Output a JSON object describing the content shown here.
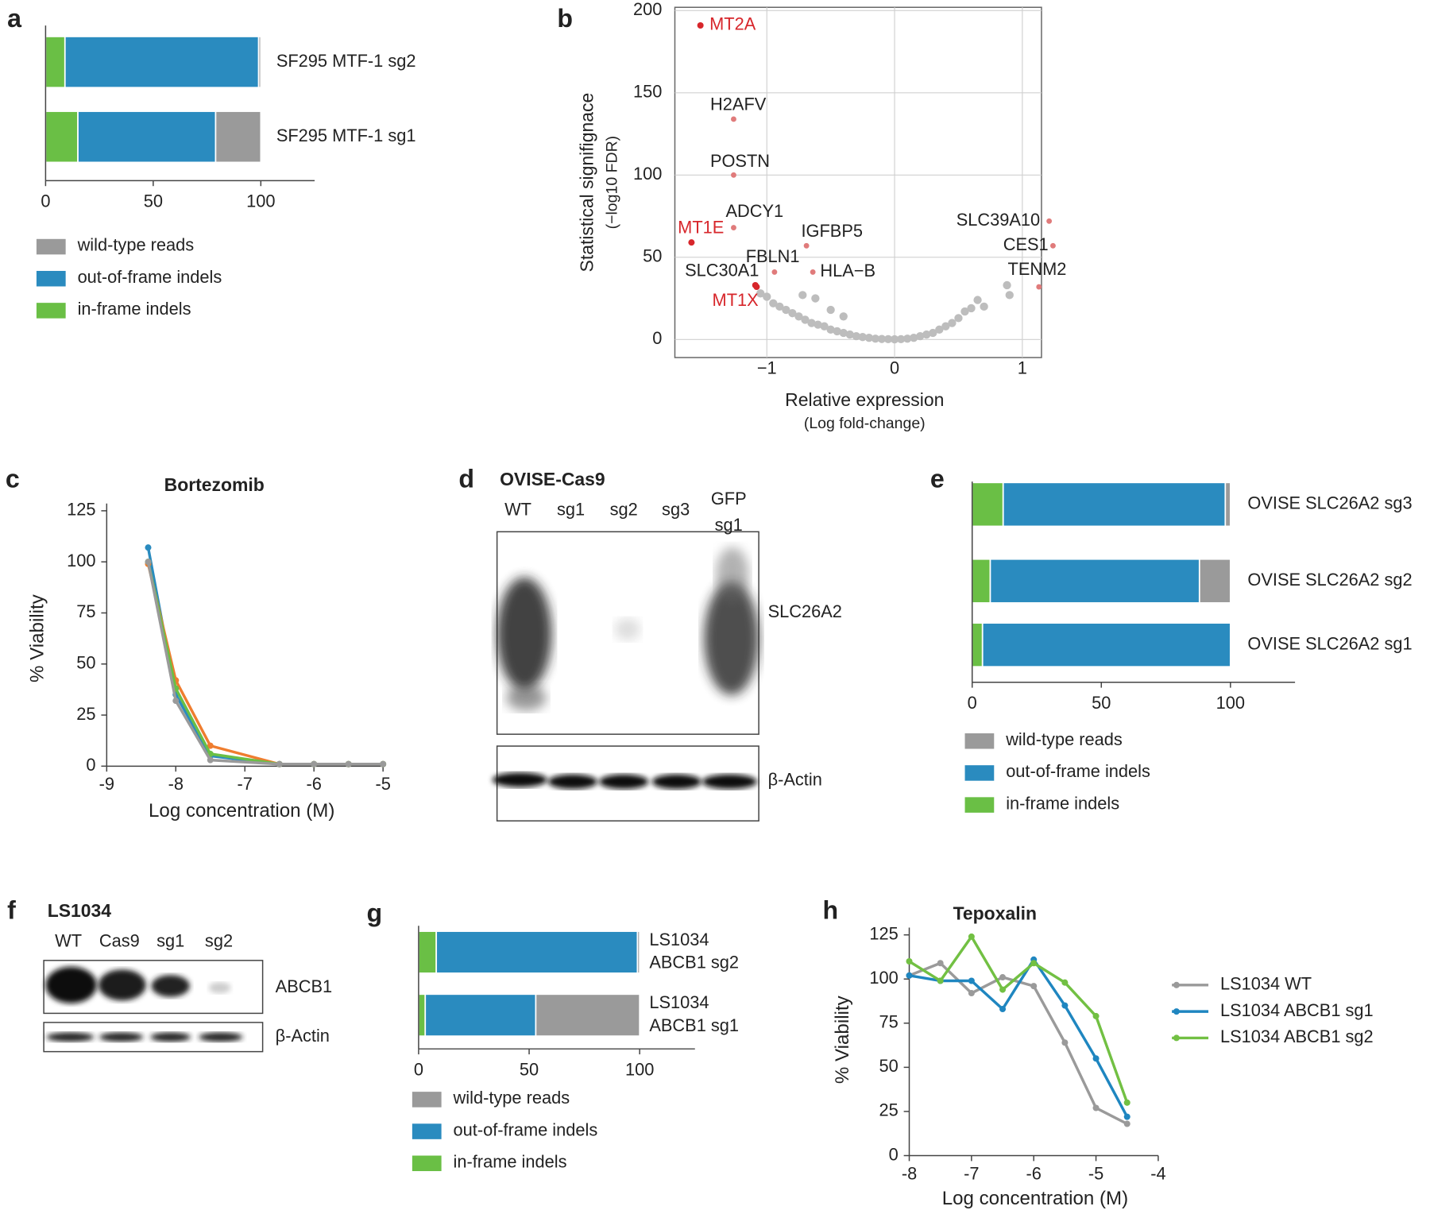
{
  "chart_data": [
    {
      "type": "hbar_stacked",
      "panel": "a",
      "categories": [
        "SF295 MTF-1 sg2",
        "SF295 MTF-1 sg1"
      ],
      "series": [
        {
          "name": "in-frame indels",
          "color": "#6abf45",
          "values": [
            9,
            15
          ]
        },
        {
          "name": "out-of-frame indels",
          "color": "#2a8bbf",
          "values": [
            90,
            64
          ]
        },
        {
          "name": "wild-type reads",
          "color": "#9a9a9a",
          "values": [
            1,
            21
          ]
        }
      ],
      "xlim": [
        0,
        125
      ],
      "xticks": [
        0,
        50,
        100
      ]
    },
    {
      "type": "volcano",
      "panel": "b",
      "ylabel": "Statistical signifignace",
      "ylabel_sub": "(−log10 FDR)",
      "xlabel": "Relative expression",
      "xlabel_sub": "(Log fold-change)",
      "xlim": [
        -1.72,
        1.15
      ],
      "ylim": [
        -11,
        202
      ],
      "xticks": [
        {
          "value": -1,
          "label": "−1"
        },
        0,
        1
      ],
      "yticks": [
        0,
        50,
        100,
        150,
        200
      ],
      "grid": true,
      "labeled_points": {
        "labels": [
          "MT2A",
          "H2AFV",
          "POSTN",
          "ADCY1",
          "MT1E",
          "IGFBP5",
          "FBLN1",
          "HLA−B",
          "SLC30A1",
          "MT1X",
          "SLC39A10",
          "CES1",
          "TENM2"
        ],
        "x": [
          -1.52,
          -1.26,
          -1.26,
          -1.26,
          -1.59,
          -0.69,
          -0.94,
          -0.64,
          -1.09,
          -1.08,
          1.21,
          1.24,
          1.13
        ],
        "y": [
          191,
          134,
          100,
          68,
          59,
          57,
          41,
          41,
          33,
          32,
          72,
          57,
          32
        ],
        "colors": [
          "#d7262b",
          "#e07b7b",
          "#e07b7b",
          "#e07b7b",
          "#d7262b",
          "#e07b7b",
          "#e07b7b",
          "#e07b7b",
          "#d7262b",
          "#d7262b",
          "#e07b7b",
          "#e07b7b",
          "#e07b7b"
        ],
        "label_colors": [
          "#d7262b",
          "#222222",
          "#222222",
          "#222222",
          "#d7262b",
          "#222222",
          "#222222",
          "#222222",
          "#222222",
          "#d7262b",
          "#222222",
          "#222222",
          "#222222"
        ]
      },
      "background": {
        "color": "#bdbdbd",
        "x": [
          -1.05,
          -1.0,
          -0.95,
          -0.9,
          -0.85,
          -0.8,
          -0.75,
          -0.7,
          -0.65,
          -0.6,
          -0.55,
          -0.5,
          -0.45,
          -0.4,
          -0.35,
          -0.3,
          -0.25,
          -0.2,
          -0.15,
          -0.1,
          -0.05,
          0,
          0.05,
          0.1,
          0.15,
          0.2,
          0.25,
          0.3,
          0.35,
          0.4,
          0.45,
          0.5,
          0.55,
          0.6,
          0.65,
          0.7,
          0.88,
          0.9,
          -0.72,
          -0.62,
          -0.5,
          -0.4
        ],
        "y": [
          28,
          26,
          22,
          20,
          18,
          16,
          14,
          12,
          10,
          9,
          8,
          6,
          5,
          4,
          3,
          2,
          1.5,
          1,
          0.5,
          0.3,
          0.2,
          0.1,
          0.2,
          0.5,
          1,
          2,
          3,
          4,
          6,
          8,
          10,
          13,
          17,
          19,
          24,
          20,
          33,
          27,
          27,
          25,
          18,
          14
        ]
      }
    },
    {
      "type": "line",
      "panel": "c",
      "title": "Bortezomib",
      "xlabel": "Log concentration (M)",
      "ylabel": "% Viability",
      "x": [
        -8.4,
        -8,
        -7.5,
        -6.5,
        -6,
        -5.5,
        -5
      ],
      "series": [
        {
          "color": "#2a8bbf",
          "values": [
            107,
            35,
            5,
            1,
            1,
            1,
            1
          ]
        },
        {
          "color": "#ef7d2f",
          "values": [
            99,
            42,
            10,
            1,
            1,
            1,
            1
          ]
        },
        {
          "color": "#6abf45",
          "values": [
            100,
            38,
            6,
            1,
            1,
            1,
            1
          ]
        },
        {
          "color": "#9a9a9a",
          "values": [
            100,
            32,
            3,
            1,
            1,
            1,
            1
          ]
        }
      ],
      "xlim": [
        -9,
        -5
      ],
      "ylim": [
        0,
        125
      ],
      "xticks": [
        -9,
        -8,
        -7,
        -6,
        -5
      ],
      "yticks": [
        0,
        25,
        50,
        75,
        100,
        125
      ]
    },
    {
      "type": "blot",
      "panel": "d",
      "title": "OVISE-Cas9",
      "lanes": [
        "WT",
        "sg1",
        "sg2",
        "sg3",
        [
          "GFP",
          "sg1"
        ]
      ],
      "bands": [
        "SLC26A2",
        "β-Actin"
      ]
    },
    {
      "type": "hbar_stacked",
      "panel": "e",
      "categories": [
        "OVISE SLC26A2 sg3",
        "OVISE SLC26A2 sg2",
        "OVISE SLC26A2 sg1"
      ],
      "series": [
        {
          "name": "in-frame indels",
          "color": "#6abf45",
          "values": [
            12,
            7,
            4
          ]
        },
        {
          "name": "out-of-frame indels",
          "color": "#2a8bbf",
          "values": [
            86,
            81,
            96
          ]
        },
        {
          "name": "wild-type reads",
          "color": "#9a9a9a",
          "values": [
            2,
            12,
            0
          ]
        }
      ],
      "xlim": [
        0,
        125
      ],
      "xticks": [
        0,
        50,
        100
      ]
    },
    {
      "type": "blot",
      "panel": "f",
      "title": "LS1034",
      "lanes": [
        "WT",
        "Cas9",
        "sg1",
        "sg2"
      ],
      "bands": [
        "ABCB1",
        "β-Actin"
      ]
    },
    {
      "type": "hbar_stacked",
      "panel": "g",
      "categories": [
        [
          "LS1034",
          "ABCB1 sg2"
        ],
        [
          "LS1034",
          "ABCB1 sg1"
        ]
      ],
      "series": [
        {
          "name": "in-frame indels",
          "color": "#6abf45",
          "values": [
            8,
            3
          ]
        },
        {
          "name": "out-of-frame indels",
          "color": "#2a8bbf",
          "values": [
            91,
            50
          ]
        },
        {
          "name": "wild-type reads",
          "color": "#9a9a9a",
          "values": [
            1,
            47
          ]
        }
      ],
      "xlim": [
        0,
        125
      ],
      "xticks": [
        0,
        50,
        100
      ]
    },
    {
      "type": "line",
      "panel": "h",
      "title": "Tepoxalin",
      "xlabel": "Log concentration (M)",
      "ylabel": "% Viability",
      "x": [
        -8,
        -7.5,
        -7,
        -6.5,
        -6,
        -5.5,
        -5,
        -4.5
      ],
      "series": [
        {
          "name": "LS1034 WT",
          "color": "#9a9a9a",
          "values": [
            102,
            109,
            92,
            101,
            96,
            64,
            27,
            18
          ]
        },
        {
          "name": "LS1034 ABCB1 sg1",
          "color": "#1f86c0",
          "values": [
            102,
            99,
            99,
            83,
            111,
            85,
            55,
            22
          ]
        },
        {
          "name": "LS1034 ABCB1 sg2",
          "color": "#72c043",
          "values": [
            110,
            99,
            124,
            94,
            109,
            98,
            79,
            30
          ]
        }
      ],
      "xlim": [
        -8,
        -4
      ],
      "ylim": [
        0,
        125
      ],
      "xticks": [
        -8,
        -7,
        -6,
        -5,
        -4
      ],
      "yticks": [
        0,
        25,
        50,
        75,
        100,
        125
      ]
    }
  ]
}
